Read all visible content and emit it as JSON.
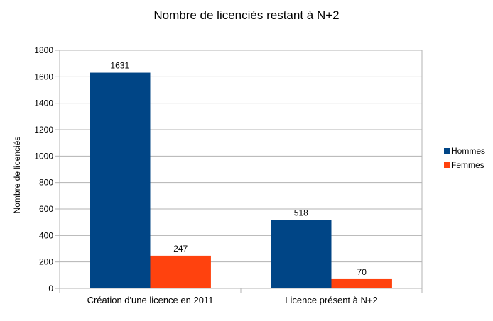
{
  "chart_data": {
    "type": "bar",
    "title": "Nombre de licenciés restant à N+2",
    "xlabel": "",
    "ylabel": "Nombre de licenciés",
    "categories": [
      "Création d'une licence en 2011",
      "Licence présent à N+2"
    ],
    "series": [
      {
        "name": "Hommes",
        "values": [
          1631,
          518
        ],
        "color": "#004586"
      },
      {
        "name": "Femmes",
        "values": [
          247,
          70
        ],
        "color": "#ff420e"
      }
    ],
    "ylim": [
      0,
      1800
    ],
    "yticks": [
      0,
      200,
      400,
      600,
      800,
      1000,
      1200,
      1400,
      1600,
      1800
    ],
    "grid": true,
    "legend": "right"
  }
}
